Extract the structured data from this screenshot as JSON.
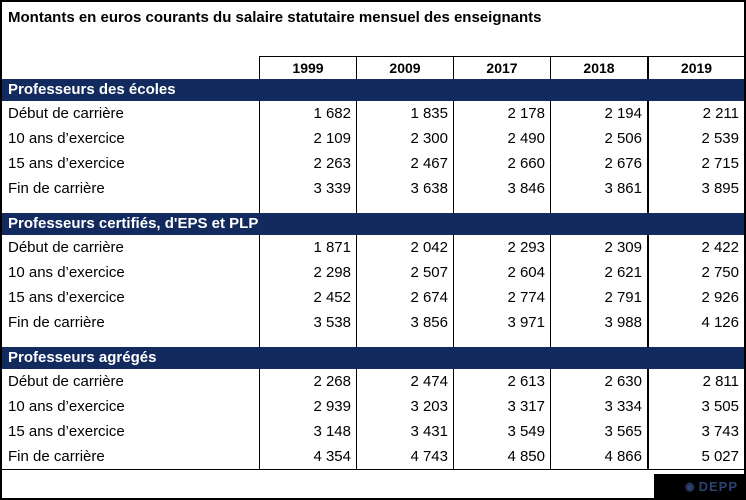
{
  "title": "Montants en euros courants du salaire statutaire mensuel des enseignants",
  "columns": [
    "1999",
    "2009",
    "2017",
    "2018",
    "2019"
  ],
  "sections": [
    {
      "header": "Professeurs des écoles",
      "rows": [
        {
          "label": "Début de carrière",
          "values": [
            "1 682",
            "1 835",
            "2 178",
            "2 194",
            "2 211"
          ]
        },
        {
          "label": "10 ans d’exercice",
          "values": [
            "2 109",
            "2 300",
            "2 490",
            "2 506",
            "2 539"
          ]
        },
        {
          "label": "15 ans d’exercice",
          "values": [
            "2 263",
            "2 467",
            "2 660",
            "2 676",
            "2 715"
          ]
        },
        {
          "label": "Fin de carrière",
          "values": [
            "3 339",
            "3 638",
            "3 846",
            "3 861",
            "3 895"
          ]
        }
      ]
    },
    {
      "header": "Professeurs certifiés, d'EPS et PLP",
      "rows": [
        {
          "label": "Début de carrière",
          "values": [
            "1 871",
            "2 042",
            "2 293",
            "2 309",
            "2 422"
          ]
        },
        {
          "label": "10 ans d’exercice",
          "values": [
            "2 298",
            "2 507",
            "2 604",
            "2 621",
            "2 750"
          ]
        },
        {
          "label": "15 ans d’exercice",
          "values": [
            "2 452",
            "2 674",
            "2 774",
            "2 791",
            "2 926"
          ]
        },
        {
          "label": "Fin de carrière",
          "values": [
            "3 538",
            "3 856",
            "3 971",
            "3 988",
            "4 126"
          ]
        }
      ]
    },
    {
      "header": "Professeurs agrégés",
      "rows": [
        {
          "label": "Début de carrière",
          "values": [
            "2 268",
            "2 474",
            "2 613",
            "2 630",
            "2 811"
          ]
        },
        {
          "label": "10 ans d’exercice",
          "values": [
            "2 939",
            "3 203",
            "3 317",
            "3 334",
            "3 505"
          ]
        },
        {
          "label": "15 ans d’exercice",
          "values": [
            "3 148",
            "3 431",
            "3 549",
            "3 565",
            "3 743"
          ]
        },
        {
          "label": "Fin de carrière",
          "values": [
            "4 354",
            "4 743",
            "4 850",
            "4 866",
            "5 027"
          ]
        }
      ]
    }
  ],
  "badge": {
    "logo_glyph": "◉",
    "label": "DEPP"
  },
  "colors": {
    "section_header_bg": "#132a5e",
    "section_header_text": "#ffffff",
    "table_border": "#000000",
    "badge_bg": "#000000",
    "badge_text": "#2c4270"
  },
  "chart_data": {
    "type": "table",
    "title": "Montants en euros courants du salaire statutaire mensuel des enseignants",
    "columns": [
      "",
      "1999",
      "2009",
      "2017",
      "2018",
      "2019"
    ],
    "sections": [
      {
        "name": "Professeurs des écoles",
        "rows": [
          {
            "label": "Début de carrière",
            "values": [
              1682,
              1835,
              2178,
              2194,
              2211
            ]
          },
          {
            "label": "10 ans d’exercice",
            "values": [
              2109,
              2300,
              2490,
              2506,
              2539
            ]
          },
          {
            "label": "15 ans d’exercice",
            "values": [
              2263,
              2467,
              2660,
              2676,
              2715
            ]
          },
          {
            "label": "Fin de carrière",
            "values": [
              3339,
              3638,
              3846,
              3861,
              3895
            ]
          }
        ]
      },
      {
        "name": "Professeurs certifiés, d'EPS et PLP",
        "rows": [
          {
            "label": "Début de carrière",
            "values": [
              1871,
              2042,
              2293,
              2309,
              2422
            ]
          },
          {
            "label": "10 ans d’exercice",
            "values": [
              2298,
              2507,
              2604,
              2621,
              2750
            ]
          },
          {
            "label": "15 ans d’exercice",
            "values": [
              2452,
              2674,
              2774,
              2791,
              2926
            ]
          },
          {
            "label": "Fin de carrière",
            "values": [
              3538,
              3856,
              3971,
              3988,
              4126
            ]
          }
        ]
      },
      {
        "name": "Professeurs agrégés",
        "rows": [
          {
            "label": "Début de carrière",
            "values": [
              2268,
              2474,
              2613,
              2630,
              2811
            ]
          },
          {
            "label": "10 ans d’exercice",
            "values": [
              2939,
              3203,
              3317,
              3334,
              3505
            ]
          },
          {
            "label": "15 ans d’exercice",
            "values": [
              3148,
              3431,
              3549,
              3565,
              3743
            ]
          },
          {
            "label": "Fin de carrière",
            "values": [
              4354,
              4743,
              4850,
              4866,
              5027
            ]
          }
        ]
      }
    ],
    "source_badge": "DEPP"
  }
}
